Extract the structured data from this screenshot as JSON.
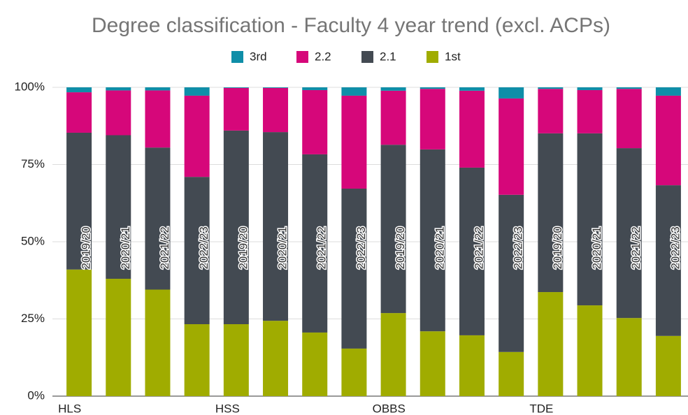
{
  "chart_data": {
    "type": "stacked_bar",
    "title": "Degree classification - Faculty 4 year trend (excl. ACPs)",
    "categories": [
      "2019/20",
      "2020/21",
      "2021/22",
      "2022/23",
      "2019/20",
      "2020/21",
      "2021/22",
      "2022/23",
      "2019/20",
      "2020/21",
      "2021/22",
      "2022/23",
      "2019/20",
      "2020/21",
      "2021/22",
      "2022/23"
    ],
    "groups": [
      "HLS",
      null,
      null,
      null,
      "HSS",
      null,
      null,
      null,
      "OBBS",
      null,
      null,
      null,
      "TDE",
      null,
      null,
      null
    ],
    "series": [
      {
        "name": "3rd",
        "color": "#0f8ea8",
        "values": [
          1.6,
          1,
          1,
          2.7,
          0.2,
          0.2,
          0.9,
          2.7,
          1.1,
          0.5,
          1.1,
          3.6,
          0.5,
          0.9,
          0.5,
          2.7
        ]
      },
      {
        "name": "2.2",
        "color": "#d6077a",
        "values": [
          13.1,
          14.5,
          18.5,
          26.3,
          13.8,
          14.3,
          20.8,
          30.1,
          17.5,
          19.6,
          24.9,
          31.2,
          14.4,
          14,
          19.2,
          29
        ]
      },
      {
        "name": "2.1",
        "color": "#434a52",
        "values": [
          44.3,
          46.5,
          46,
          47.7,
          62.7,
          61.1,
          57.7,
          51.8,
          54.5,
          58.9,
          54.3,
          50.9,
          51.4,
          55.7,
          55,
          48.8
        ]
      },
      {
        "name": "1st",
        "color": "#a0ac00",
        "values": [
          41,
          38,
          34.5,
          23.3,
          23.3,
          24.4,
          20.6,
          15.4,
          26.9,
          21,
          19.7,
          14.3,
          33.7,
          29.4,
          25.3,
          19.5
        ]
      }
    ],
    "ylim": [
      0,
      100
    ],
    "yticks": [
      {
        "value": 0,
        "label": "0%"
      },
      {
        "value": 25,
        "label": "25%"
      },
      {
        "value": 50,
        "label": "50%"
      },
      {
        "value": 75,
        "label": "75%"
      },
      {
        "value": 100,
        "label": "100%"
      }
    ],
    "grid": true,
    "legend": "top"
  }
}
